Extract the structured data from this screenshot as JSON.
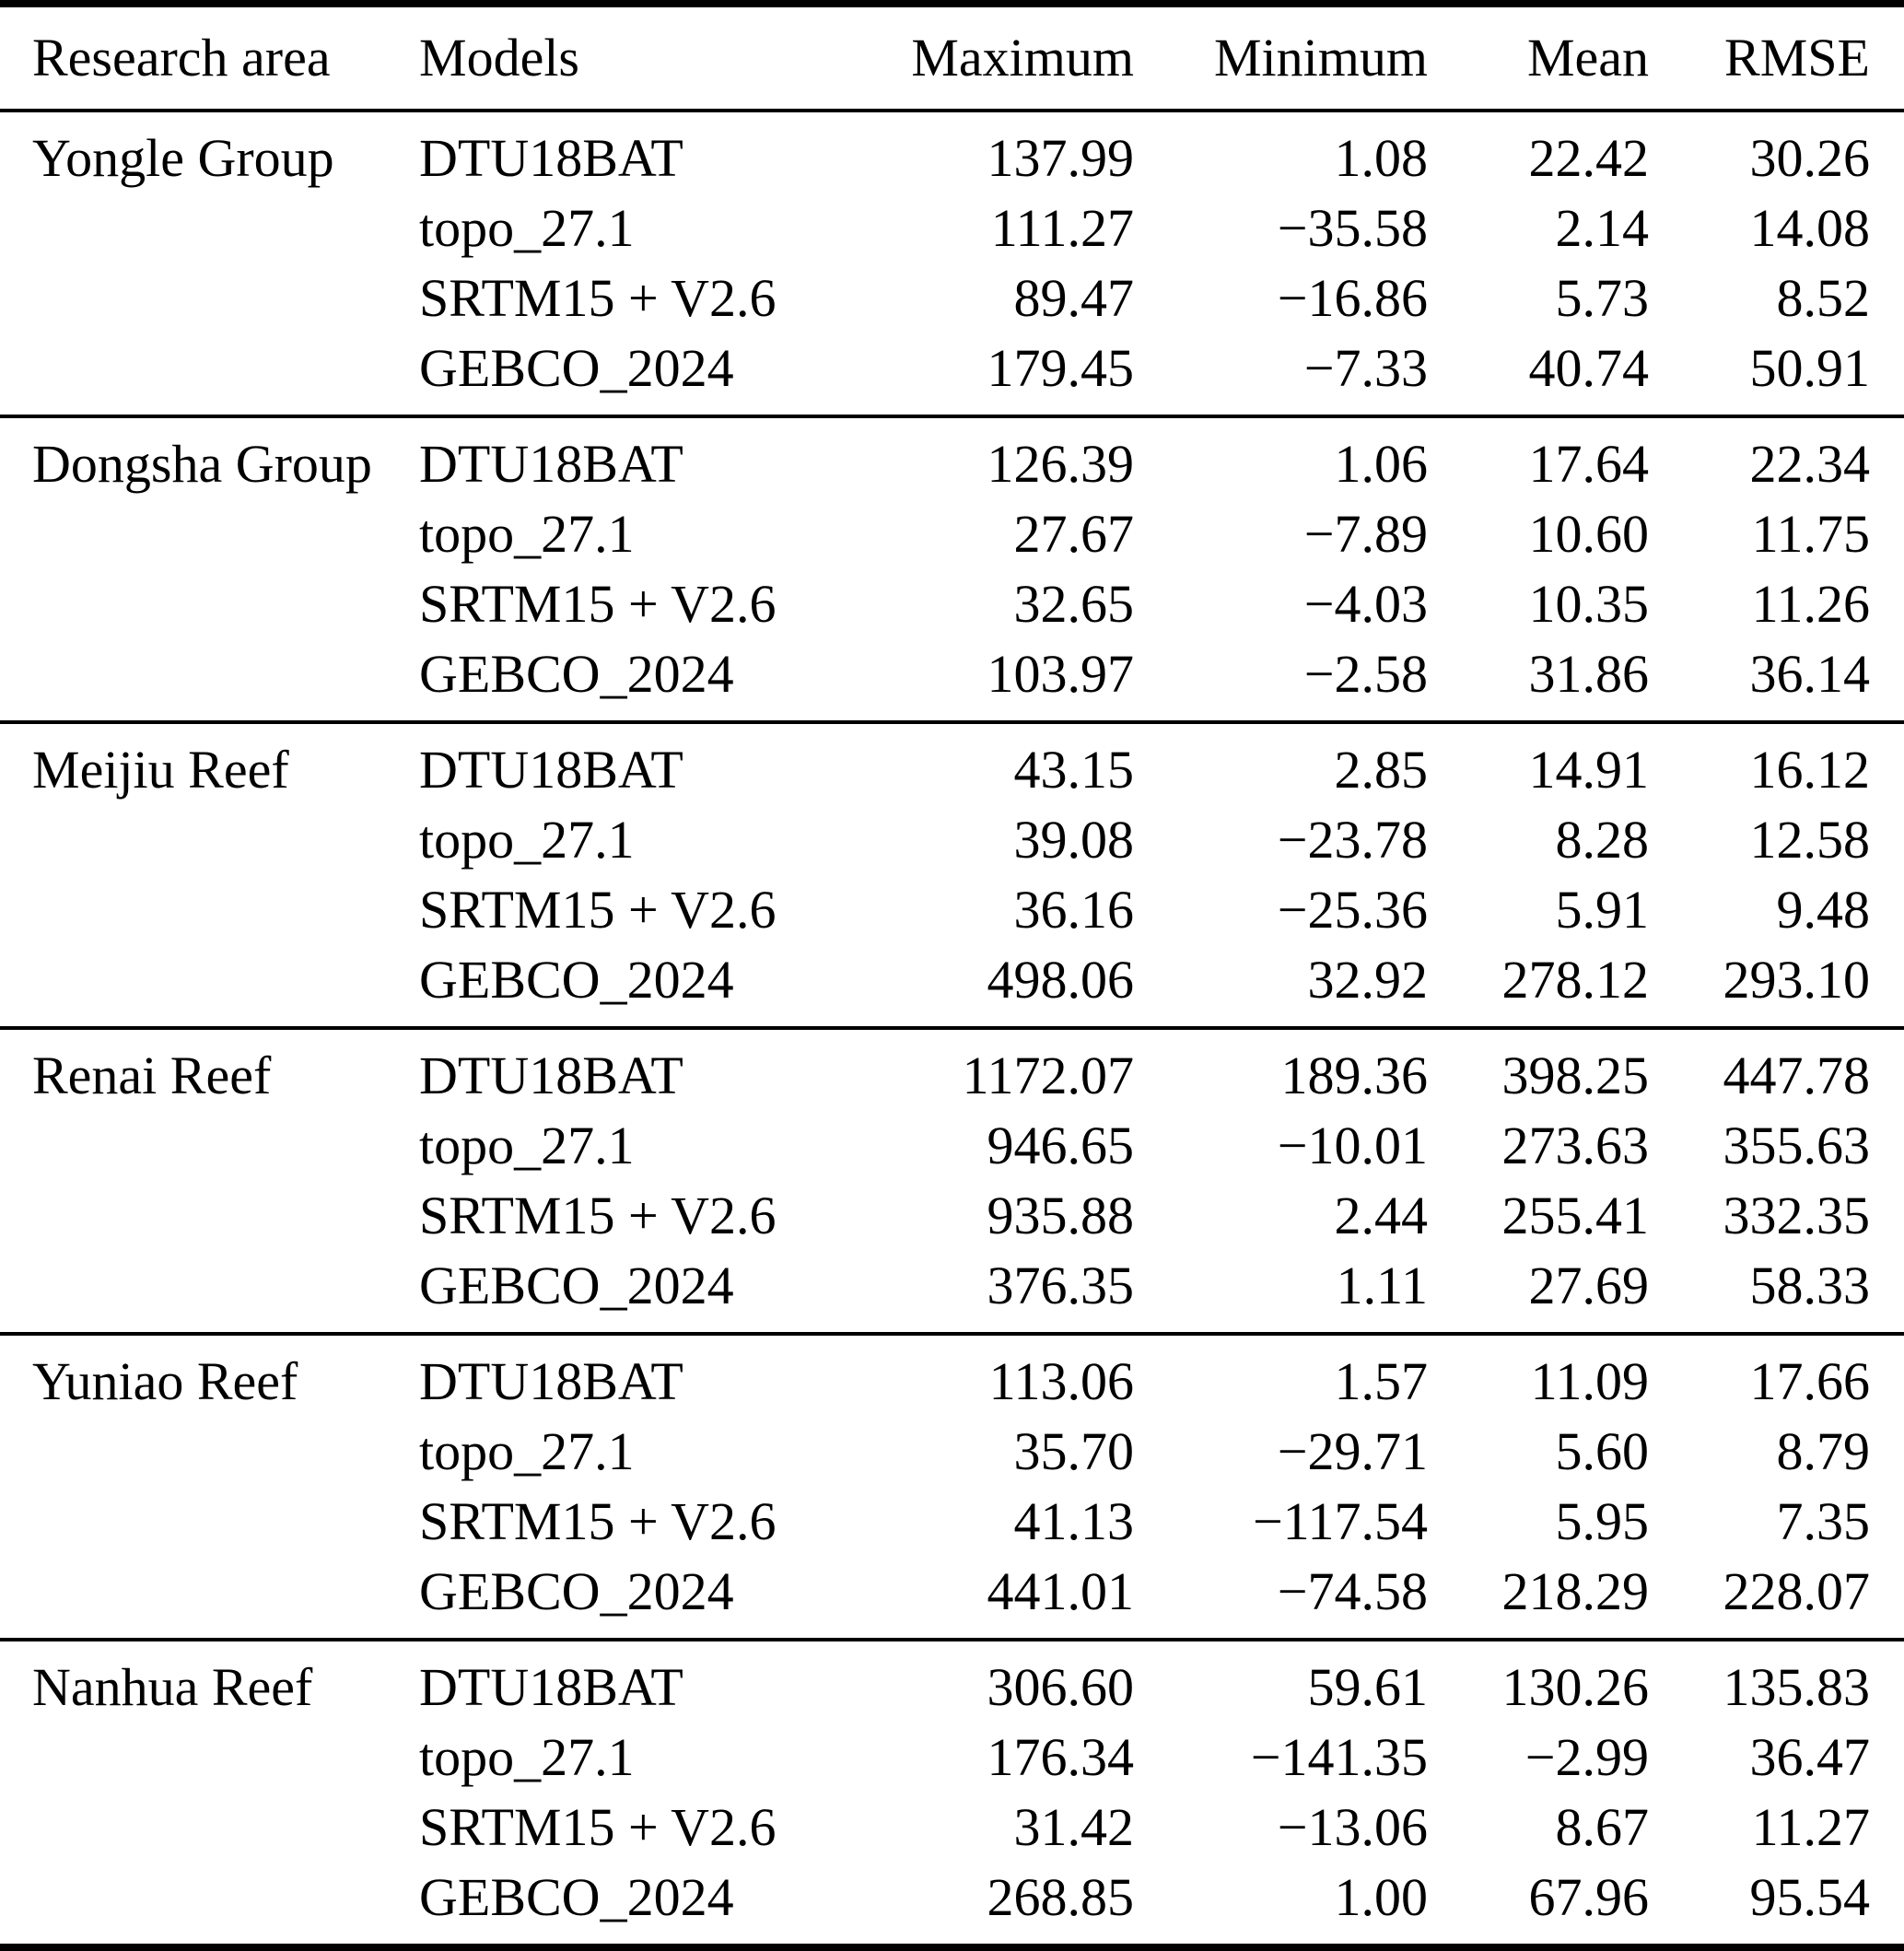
{
  "table": {
    "headers": {
      "research_area": "Research area",
      "models": "Models",
      "maximum": "Maximum",
      "minimum": "Minimum",
      "mean": "Mean",
      "rmse": "RMSE"
    },
    "groups": [
      {
        "area": "Yongle Group",
        "rows": [
          {
            "model": "DTU18BAT",
            "maximum": "137.99",
            "minimum": "1.08",
            "mean": "22.42",
            "rmse": "30.26"
          },
          {
            "model": "topo_27.1",
            "maximum": "111.27",
            "minimum": "−35.58",
            "mean": "2.14",
            "rmse": "14.08"
          },
          {
            "model": "SRTM15 + V2.6",
            "maximum": "89.47",
            "minimum": "−16.86",
            "mean": "5.73",
            "rmse": "8.52"
          },
          {
            "model": "GEBCO_2024",
            "maximum": "179.45",
            "minimum": "−7.33",
            "mean": "40.74",
            "rmse": "50.91"
          }
        ]
      },
      {
        "area": "Dongsha Group",
        "rows": [
          {
            "model": "DTU18BAT",
            "maximum": "126.39",
            "minimum": "1.06",
            "mean": "17.64",
            "rmse": "22.34"
          },
          {
            "model": "topo_27.1",
            "maximum": "27.67",
            "minimum": "−7.89",
            "mean": "10.60",
            "rmse": "11.75"
          },
          {
            "model": "SRTM15 + V2.6",
            "maximum": "32.65",
            "minimum": "−4.03",
            "mean": "10.35",
            "rmse": "11.26"
          },
          {
            "model": "GEBCO_2024",
            "maximum": "103.97",
            "minimum": "−2.58",
            "mean": "31.86",
            "rmse": "36.14"
          }
        ]
      },
      {
        "area": "Meijiu Reef",
        "rows": [
          {
            "model": "DTU18BAT",
            "maximum": "43.15",
            "minimum": "2.85",
            "mean": "14.91",
            "rmse": "16.12"
          },
          {
            "model": "topo_27.1",
            "maximum": "39.08",
            "minimum": "−23.78",
            "mean": "8.28",
            "rmse": "12.58"
          },
          {
            "model": "SRTM15 + V2.6",
            "maximum": "36.16",
            "minimum": "−25.36",
            "mean": "5.91",
            "rmse": "9.48"
          },
          {
            "model": "GEBCO_2024",
            "maximum": "498.06",
            "minimum": "32.92",
            "mean": "278.12",
            "rmse": "293.10"
          }
        ]
      },
      {
        "area": "Renai Reef",
        "rows": [
          {
            "model": "DTU18BAT",
            "maximum": "1172.07",
            "minimum": "189.36",
            "mean": "398.25",
            "rmse": "447.78"
          },
          {
            "model": "topo_27.1",
            "maximum": "946.65",
            "minimum": "−10.01",
            "mean": "273.63",
            "rmse": "355.63"
          },
          {
            "model": "SRTM15 + V2.6",
            "maximum": "935.88",
            "minimum": "2.44",
            "mean": "255.41",
            "rmse": "332.35"
          },
          {
            "model": "GEBCO_2024",
            "maximum": "376.35",
            "minimum": "1.11",
            "mean": "27.69",
            "rmse": "58.33"
          }
        ]
      },
      {
        "area": "Yuniao Reef",
        "rows": [
          {
            "model": "DTU18BAT",
            "maximum": "113.06",
            "minimum": "1.57",
            "mean": "11.09",
            "rmse": "17.66"
          },
          {
            "model": "topo_27.1",
            "maximum": "35.70",
            "minimum": "−29.71",
            "mean": "5.60",
            "rmse": "8.79"
          },
          {
            "model": "SRTM15 + V2.6",
            "maximum": "41.13",
            "minimum": "−117.54",
            "mean": "5.95",
            "rmse": "7.35"
          },
          {
            "model": "GEBCO_2024",
            "maximum": "441.01",
            "minimum": "−74.58",
            "mean": "218.29",
            "rmse": "228.07"
          }
        ]
      },
      {
        "area": "Nanhua Reef",
        "rows": [
          {
            "model": "DTU18BAT",
            "maximum": "306.60",
            "minimum": "59.61",
            "mean": "130.26",
            "rmse": "135.83"
          },
          {
            "model": "topo_27.1",
            "maximum": "176.34",
            "minimum": "−141.35",
            "mean": "−2.99",
            "rmse": "36.47"
          },
          {
            "model": "SRTM15 + V2.6",
            "maximum": "31.42",
            "minimum": "−13.06",
            "mean": "8.67",
            "rmse": "11.27"
          },
          {
            "model": "GEBCO_2024",
            "maximum": "268.85",
            "minimum": "1.00",
            "mean": "67.96",
            "rmse": "95.54"
          }
        ]
      }
    ]
  }
}
